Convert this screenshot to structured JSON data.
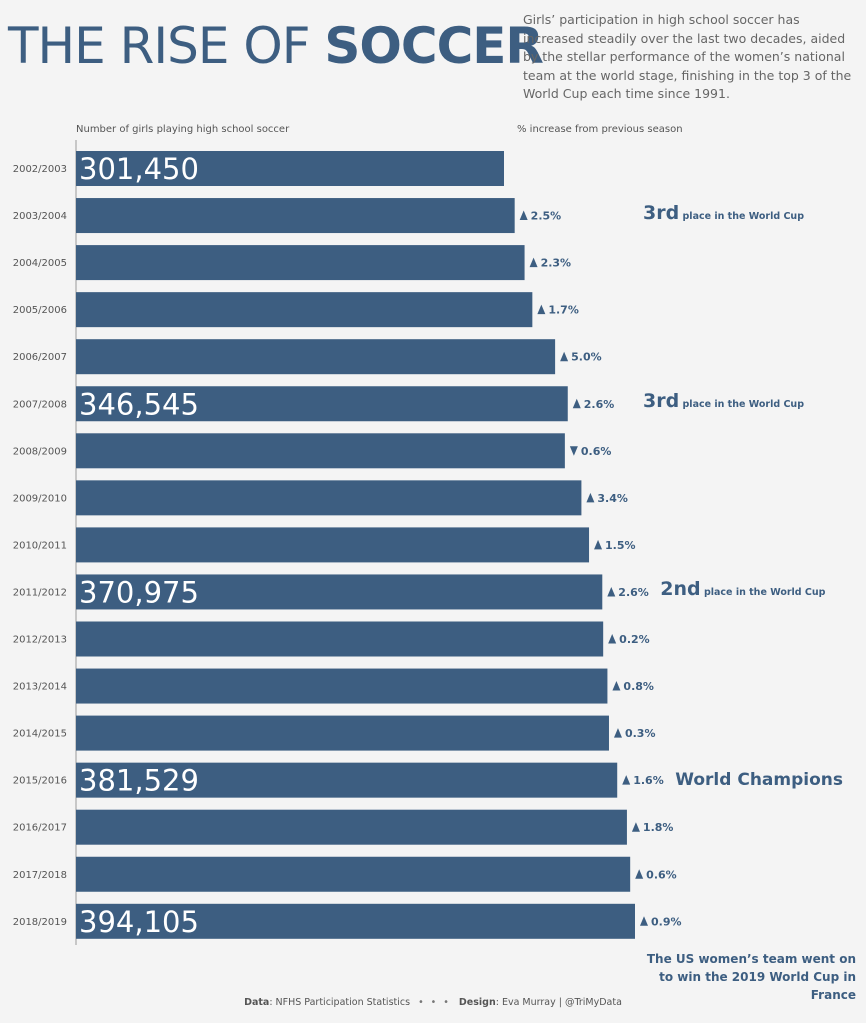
{
  "header": {
    "title_light": "THE RISE OF ",
    "title_bold": "SOCCER",
    "description": "Girls’ participation in high school soccer has increased steadily over the last two decades, aided by the stellar performance of the women’s national team at the world stage, finishing in the top 3 of the World Cup each time since 1991."
  },
  "column_headers": {
    "left": "Number of girls playing high school soccer",
    "right": "% increase from previous season"
  },
  "annotations": [
    {
      "row": 1,
      "big": "3rd",
      "small": "place in the World Cup"
    },
    {
      "row": 5,
      "big": "3rd",
      "small": "place in the World Cup"
    },
    {
      "row": 9,
      "big": "2nd",
      "small": "place in the World Cup"
    },
    {
      "row": 13,
      "big": "World Champions",
      "small": ""
    }
  ],
  "footnote": "The US women’s team went on to win the 2019 World Cup in France",
  "credits": {
    "data_label": "Data",
    "data_text": ": NFHS Participation Statistics",
    "dots": "• • •",
    "design_label": "Design",
    "design_text": ": Eva Murray | @TriMyData"
  },
  "colors": {
    "bar": "#3d5e81",
    "background": "#f4f4f4"
  },
  "chart_data": {
    "type": "bar",
    "orientation": "horizontal",
    "categories": [
      "2002/2003",
      "2003/2004",
      "2004/2005",
      "2005/2006",
      "2006/2007",
      "2007/2008",
      "2008/2009",
      "2009/2010",
      "2010/2011",
      "2011/2012",
      "2012/2013",
      "2013/2014",
      "2014/2015",
      "2015/2016",
      "2016/2017",
      "2017/2018",
      "2018/2019"
    ],
    "values": [
      301450,
      309000,
      316000,
      321500,
      337600,
      346545,
      344500,
      356200,
      361600,
      370975,
      371600,
      374600,
      375700,
      381529,
      388400,
      390700,
      394105
    ],
    "labels": [
      "301,450",
      "",
      "",
      "",
      "",
      "346,545",
      "",
      "",
      "",
      "370,975",
      "",
      "",
      "",
      "381,529",
      "",
      "",
      "394,105"
    ],
    "pct_change": [
      null,
      {
        "dir": "up",
        "text": "2.5%"
      },
      {
        "dir": "up",
        "text": "2.3%"
      },
      {
        "dir": "up",
        "text": "1.7%"
      },
      {
        "dir": "up",
        "text": "5.0%"
      },
      {
        "dir": "up",
        "text": "2.6%"
      },
      {
        "dir": "down",
        "text": "0.6%"
      },
      {
        "dir": "up",
        "text": "3.4%"
      },
      {
        "dir": "up",
        "text": "1.5%"
      },
      {
        "dir": "up",
        "text": "2.6%"
      },
      {
        "dir": "up",
        "text": "0.2%"
      },
      {
        "dir": "up",
        "text": "0.8%"
      },
      {
        "dir": "up",
        "text": "0.3%"
      },
      {
        "dir": "up",
        "text": "1.6%"
      },
      {
        "dir": "up",
        "text": "1.8%"
      },
      {
        "dir": "up",
        "text": "0.6%"
      },
      {
        "dir": "up",
        "text": "0.9%"
      }
    ],
    "xlabel": "Number of girls playing high school soccer",
    "ylabel": "",
    "grid": false
  }
}
